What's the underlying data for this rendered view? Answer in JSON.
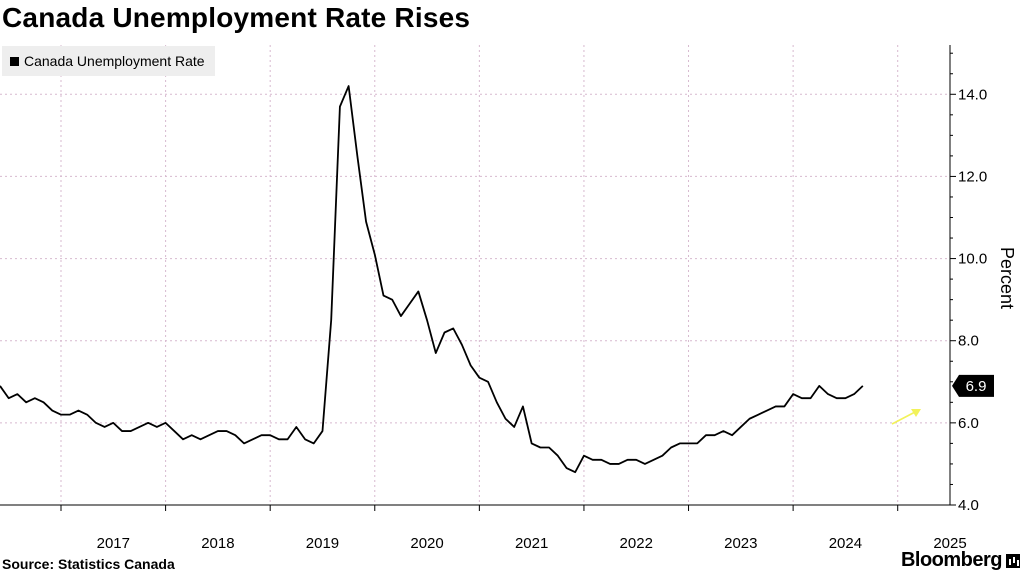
{
  "title": "Canada Unemployment Rate Rises",
  "source": "Source:  Statistics Canada",
  "brand": "Bloomberg",
  "colors": {
    "line": "#000000",
    "grid": "#d7b9cf",
    "callout_bg": "#000000",
    "arrow": "#f2f25a"
  },
  "chart_data": {
    "type": "line",
    "title": "Canada Unemployment Rate Rises",
    "xlabel": "",
    "ylabel": "Percent",
    "legend": [
      "Canada Unemployment Rate"
    ],
    "legend_placement": "top-left",
    "ylim": [
      4,
      15.2
    ],
    "yticks": [
      4,
      6,
      8,
      10,
      12,
      14
    ],
    "ytick_labels": [
      "4.0",
      "6.0",
      "8.0",
      "10.0",
      "12.0",
      "14.0"
    ],
    "xlim": [
      "2016-06",
      "2025-07"
    ],
    "xtick_labels": [
      "2017",
      "2018",
      "2019",
      "2020",
      "2021",
      "2022",
      "2023",
      "2024",
      "2025"
    ],
    "grid": true,
    "last_value_label": "6.9",
    "series": [
      {
        "name": "Canada Unemployment Rate",
        "start": "2016-06",
        "frequency": "monthly",
        "values": [
          6.9,
          6.6,
          6.7,
          6.5,
          6.6,
          6.5,
          6.3,
          6.2,
          6.2,
          6.3,
          6.2,
          6.0,
          5.9,
          6.0,
          5.8,
          5.8,
          5.9,
          6.0,
          5.9,
          6.0,
          5.8,
          5.6,
          5.7,
          5.6,
          5.7,
          5.8,
          5.8,
          5.7,
          5.5,
          5.6,
          5.7,
          5.7,
          5.6,
          5.6,
          5.9,
          5.6,
          5.5,
          5.8,
          8.5,
          13.7,
          14.2,
          12.5,
          10.9,
          10.1,
          9.1,
          9.0,
          8.6,
          8.9,
          9.2,
          8.5,
          7.7,
          8.2,
          8.3,
          7.9,
          7.4,
          7.1,
          7.0,
          6.5,
          6.1,
          5.9,
          6.4,
          5.5,
          5.4,
          5.4,
          5.2,
          4.9,
          4.8,
          5.2,
          5.1,
          5.1,
          5.0,
          5.0,
          5.1,
          5.1,
          5.0,
          5.1,
          5.2,
          5.4,
          5.5,
          5.5,
          5.5,
          5.7,
          5.7,
          5.8,
          5.7,
          5.9,
          6.1,
          6.2,
          6.3,
          6.4,
          6.4,
          6.7,
          6.6,
          6.6,
          6.9,
          6.7,
          6.6,
          6.6,
          6.7,
          6.9
        ]
      }
    ]
  }
}
